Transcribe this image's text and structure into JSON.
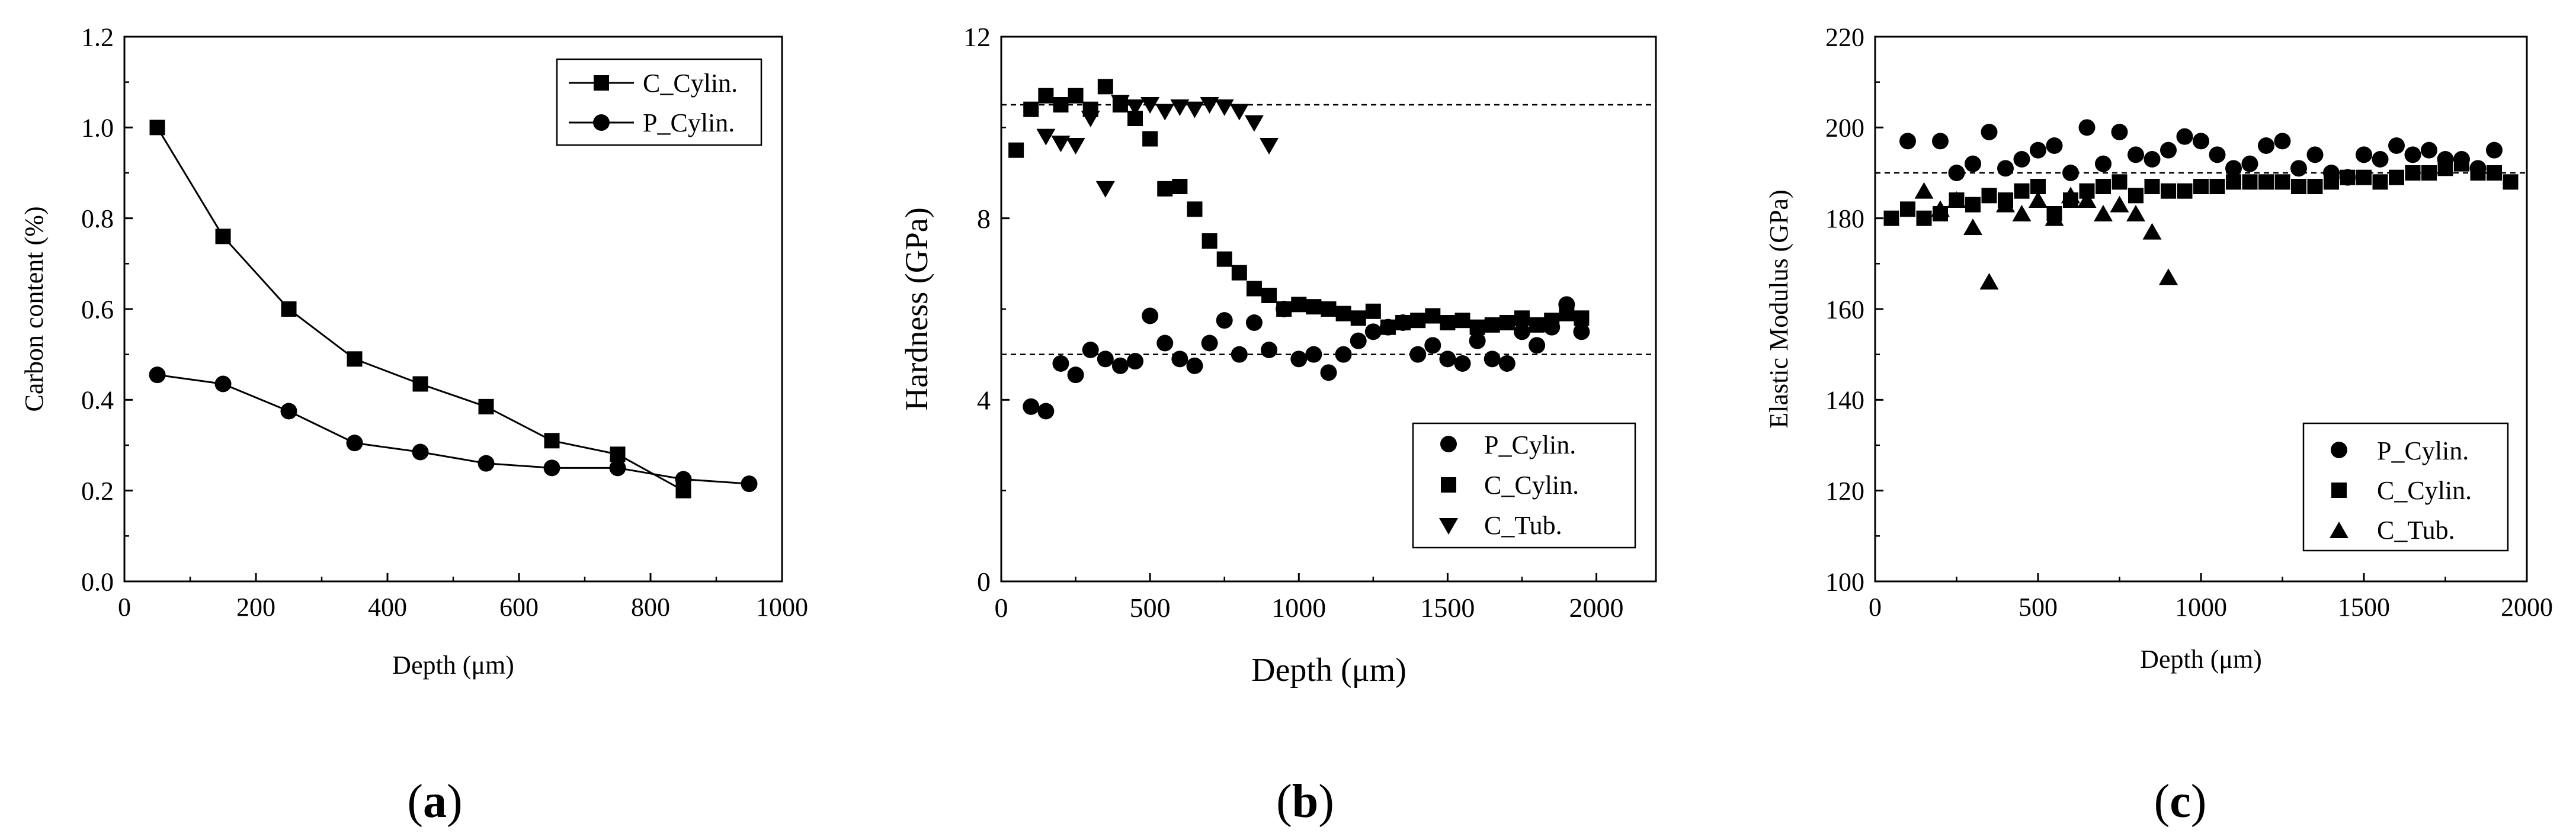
{
  "figure": {
    "panel_labels": [
      {
        "open": "(",
        "letter": "a",
        "close": ")"
      },
      {
        "open": "(",
        "letter": "b",
        "close": ")"
      },
      {
        "open": "(",
        "letter": "c",
        "close": ")"
      }
    ]
  },
  "chart_data": [
    {
      "type": "line",
      "title": "",
      "xlabel": "Depth (μm)",
      "ylabel": "Carbon content (%)",
      "xlim": [
        0,
        1000
      ],
      "ylim": [
        0,
        1.2
      ],
      "xticks": [
        0,
        200,
        400,
        600,
        800,
        1000
      ],
      "yticks": [
        0.0,
        0.2,
        0.4,
        0.6,
        0.8,
        1.0,
        1.2
      ],
      "xtick_labels": [
        "0",
        "200",
        "400",
        "600",
        "800",
        "1000"
      ],
      "ytick_labels": [
        "0.0",
        "0.2",
        "0.4",
        "0.6",
        "0.8",
        "1.0",
        "1.2"
      ],
      "grid": false,
      "legend_position": "top-right",
      "series": [
        {
          "name": "C_Cylin.",
          "marker": "square",
          "line": true,
          "x": [
            50,
            150,
            250,
            350,
            450,
            550,
            650,
            750,
            850
          ],
          "y": [
            1.0,
            0.76,
            0.6,
            0.49,
            0.435,
            0.385,
            0.31,
            0.28,
            0.2
          ]
        },
        {
          "name": "P_Cylin.",
          "marker": "circle",
          "line": true,
          "x": [
            50,
            150,
            250,
            350,
            450,
            550,
            650,
            750,
            850,
            950
          ],
          "y": [
            0.455,
            0.435,
            0.375,
            0.305,
            0.285,
            0.26,
            0.25,
            0.25,
            0.225,
            0.215
          ]
        }
      ],
      "reference_lines": []
    },
    {
      "type": "scatter",
      "title": "",
      "xlabel": "Depth (μm)",
      "ylabel": "Hardness (GPa)",
      "xlim": [
        0,
        2200
      ],
      "ylim": [
        0,
        12
      ],
      "xticks": [
        0,
        500,
        1000,
        1500,
        2000
      ],
      "yticks": [
        0,
        4,
        8,
        12
      ],
      "xtick_labels": [
        "0",
        "500",
        "1000",
        "1500",
        "2000"
      ],
      "ytick_labels": [
        "0",
        "4",
        "8",
        "12"
      ],
      "grid": false,
      "legend_position": "bottom-right",
      "series": [
        {
          "name": "P_Cylin.",
          "marker": "circle",
          "line": false,
          "x": [
            100,
            150,
            200,
            250,
            300,
            350,
            400,
            450,
            500,
            550,
            600,
            650,
            700,
            750,
            800,
            850,
            900,
            950,
            1000,
            1050,
            1100,
            1150,
            1200,
            1250,
            1300,
            1350,
            1400,
            1450,
            1500,
            1550,
            1600,
            1650,
            1700,
            1750,
            1800,
            1850,
            1900,
            1950
          ],
          "y": [
            3.85,
            3.75,
            4.8,
            4.55,
            5.1,
            4.9,
            4.75,
            4.85,
            5.85,
            5.25,
            4.9,
            4.75,
            5.25,
            5.75,
            5.0,
            5.7,
            5.1,
            6.0,
            4.9,
            5.0,
            4.6,
            5.0,
            5.3,
            5.5,
            5.6,
            5.7,
            5.0,
            5.2,
            4.9,
            4.8,
            5.3,
            4.9,
            4.8,
            5.5,
            5.2,
            5.6,
            6.1,
            5.5
          ]
        },
        {
          "name": "C_Cylin.",
          "marker": "square",
          "line": false,
          "x": [
            50,
            100,
            150,
            200,
            250,
            300,
            350,
            400,
            450,
            500,
            550,
            600,
            650,
            700,
            750,
            800,
            850,
            900,
            950,
            1000,
            1050,
            1100,
            1150,
            1200,
            1250,
            1300,
            1350,
            1400,
            1450,
            1500,
            1550,
            1600,
            1650,
            1700,
            1750,
            1800,
            1850,
            1900,
            1950
          ],
          "y": [
            9.5,
            10.4,
            10.7,
            10.5,
            10.7,
            10.4,
            10.9,
            10.5,
            10.2,
            9.75,
            8.65,
            8.7,
            8.2,
            7.5,
            7.1,
            6.8,
            6.45,
            6.3,
            6.0,
            6.1,
            6.05,
            6.0,
            5.9,
            5.8,
            5.95,
            5.6,
            5.7,
            5.75,
            5.85,
            5.7,
            5.75,
            5.6,
            5.65,
            5.7,
            5.8,
            5.65,
            5.75,
            5.9,
            5.8
          ]
        },
        {
          "name": "C_Tub.",
          "marker": "triangle-down",
          "line": false,
          "x": [
            150,
            200,
            250,
            300,
            350,
            400,
            450,
            500,
            550,
            600,
            650,
            700,
            750,
            800,
            850,
            900
          ],
          "y": [
            9.8,
            9.65,
            9.6,
            10.2,
            8.65,
            10.55,
            10.45,
            10.5,
            10.35,
            10.45,
            10.4,
            10.5,
            10.45,
            10.35,
            10.1,
            9.6
          ]
        }
      ],
      "reference_lines": [
        {
          "axis": "y",
          "value": 10.5,
          "style": "dashed"
        },
        {
          "axis": "y",
          "value": 5.0,
          "style": "dashed"
        }
      ]
    },
    {
      "type": "scatter",
      "title": "",
      "xlabel": "Depth (μm)",
      "ylabel": "Elastic Modulus (GPa)",
      "xlim": [
        0,
        2000
      ],
      "ylim": [
        100,
        220
      ],
      "xticks": [
        0,
        500,
        1000,
        1500,
        2000
      ],
      "yticks": [
        100,
        120,
        140,
        160,
        180,
        200,
        220
      ],
      "xtick_labels": [
        "0",
        "500",
        "1000",
        "1500",
        "2000"
      ],
      "ytick_labels": [
        "100",
        "120",
        "140",
        "160",
        "180",
        "200",
        "220"
      ],
      "grid": false,
      "legend_position": "bottom-right",
      "series": [
        {
          "name": "P_Cylin.",
          "marker": "circle",
          "line": false,
          "x": [
            100,
            200,
            250,
            300,
            350,
            400,
            450,
            500,
            550,
            600,
            650,
            700,
            750,
            800,
            850,
            900,
            950,
            1000,
            1050,
            1100,
            1150,
            1200,
            1250,
            1300,
            1350,
            1400,
            1450,
            1500,
            1550,
            1600,
            1650,
            1700,
            1750,
            1800,
            1850,
            1900
          ],
          "y": [
            197,
            197,
            190,
            192,
            199,
            191,
            193,
            195,
            196,
            190,
            200,
            192,
            199,
            194,
            193,
            195,
            198,
            197,
            194,
            191,
            192,
            196,
            197,
            191,
            194,
            190,
            189,
            194,
            193,
            196,
            194,
            195,
            193,
            193,
            191,
            195
          ]
        },
        {
          "name": "C_Cylin.",
          "marker": "square",
          "line": false,
          "x": [
            50,
            100,
            150,
            200,
            250,
            300,
            350,
            400,
            450,
            500,
            550,
            600,
            650,
            700,
            750,
            800,
            850,
            900,
            950,
            1000,
            1050,
            1100,
            1150,
            1200,
            1250,
            1300,
            1350,
            1400,
            1450,
            1500,
            1550,
            1600,
            1650,
            1700,
            1750,
            1800,
            1850,
            1900,
            1950
          ],
          "y": [
            180,
            182,
            180,
            181,
            184,
            183,
            185,
            184,
            186,
            187,
            181,
            184,
            186,
            187,
            188,
            185,
            187,
            186,
            186,
            187,
            187,
            188,
            188,
            188,
            188,
            187,
            187,
            188,
            189,
            189,
            188,
            189,
            190,
            190,
            191,
            192,
            190,
            190,
            188
          ]
        },
        {
          "name": "C_Tub.",
          "marker": "triangle-up",
          "line": false,
          "x": [
            150,
            200,
            250,
            300,
            350,
            400,
            450,
            500,
            550,
            600,
            650,
            700,
            750,
            800,
            850,
            900
          ],
          "y": [
            186,
            182,
            184,
            178,
            166,
            183,
            181,
            184,
            180,
            185,
            184,
            181,
            183,
            181,
            177,
            167
          ]
        }
      ],
      "reference_lines": [
        {
          "axis": "y",
          "value": 190,
          "style": "dashed"
        }
      ]
    }
  ]
}
